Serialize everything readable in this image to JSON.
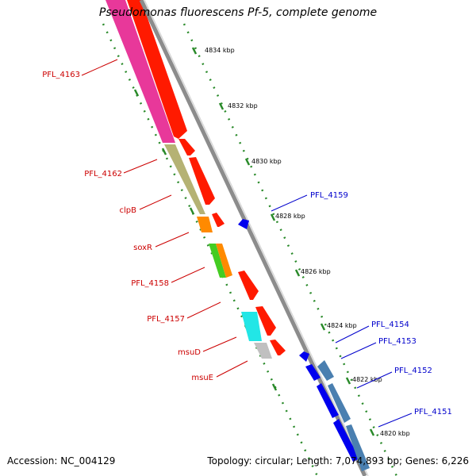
{
  "title": "Pseudomonas fluorescens Pf-5, complete genome",
  "footer": {
    "accession": "Accession: NC_004129",
    "summary": "Topology: circular; Length: 7,074,893 bp; Genes: 6,226"
  },
  "colors": {
    "forward_label": "#cc0000",
    "reverse_label": "#0000cc",
    "backbone": "#909090",
    "tick_dots": "#2a8a2a",
    "forward_gene": "#ff0000",
    "reverse_gene": "#0000ee",
    "reverse_gene_alt": "#4a7fb0"
  },
  "kbp_ticks": [
    "4834 kbp",
    "4832 kbp",
    "4830 kbp",
    "4828 kbp",
    "4826 kbp",
    "4824 kbp",
    "4822 kbp",
    "4820 kbp"
  ],
  "forward_labels": [
    "PFL_4163",
    "PFL_4162",
    "clpB",
    "soxR",
    "PFL_4158",
    "PFL_4157",
    "msuD",
    "msuE"
  ],
  "reverse_labels": [
    "PFL_4159",
    "PFL_4154",
    "PFL_4153",
    "PFL_4152",
    "PFL_4151"
  ]
}
